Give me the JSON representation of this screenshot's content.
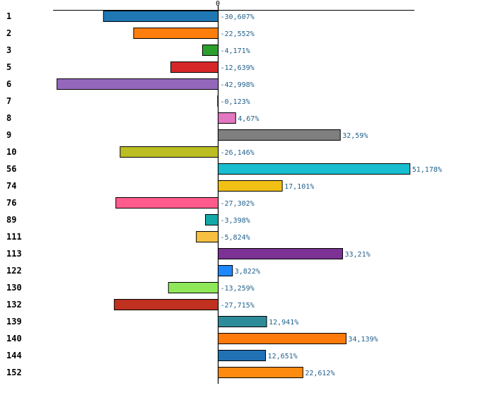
{
  "chart_data": {
    "type": "bar",
    "orientation": "horizontal",
    "title": "",
    "xlabel": "",
    "ylabel": "",
    "value_suffix": "%",
    "decimal_separator": ",",
    "xlim": [
      -52,
      60
    ],
    "zero_tick_label": "0",
    "categories": [
      "1",
      "2",
      "3",
      "5",
      "6",
      "7",
      "8",
      "9",
      "10",
      "56",
      "74",
      "76",
      "89",
      "111",
      "113",
      "122",
      "130",
      "132",
      "139",
      "140",
      "144",
      "152"
    ],
    "values": [
      -30.607,
      -22.552,
      -4.171,
      -12.639,
      -42.998,
      -0.123,
      4.67,
      32.59,
      -26.146,
      51.178,
      17.101,
      -27.302,
      -3.398,
      -5.824,
      33.21,
      3.822,
      -13.259,
      -27.715,
      12.941,
      34.139,
      12.651,
      22.612
    ],
    "value_labels": [
      "-30,607%",
      "-22,552%",
      "-4,171%",
      "-12,639%",
      "-42,998%",
      "-0,123%",
      "4,67%",
      "32,59%",
      "-26,146%",
      "51,178%",
      "17,101%",
      "-27,302%",
      "-3,398%",
      "-5,824%",
      "33,21%",
      "3,822%",
      "-13,259%",
      "-27,715%",
      "12,941%",
      "34,139%",
      "12,651%",
      "22,612%"
    ],
    "colors": [
      "#1f77b4",
      "#ff7f0e",
      "#2ca02c",
      "#d62728",
      "#9467bd",
      "#8c564b",
      "#e377c2",
      "#7f7f7f",
      "#bcbd22",
      "#17becf",
      "#f2c014",
      "#ff5c8d",
      "#13a8a8",
      "#f8c040",
      "#7b3294",
      "#1e88ff",
      "#8fe85a",
      "#c0311f",
      "#2e8b9a",
      "#ff7a0a",
      "#2171b5",
      "#ff8a10"
    ]
  }
}
